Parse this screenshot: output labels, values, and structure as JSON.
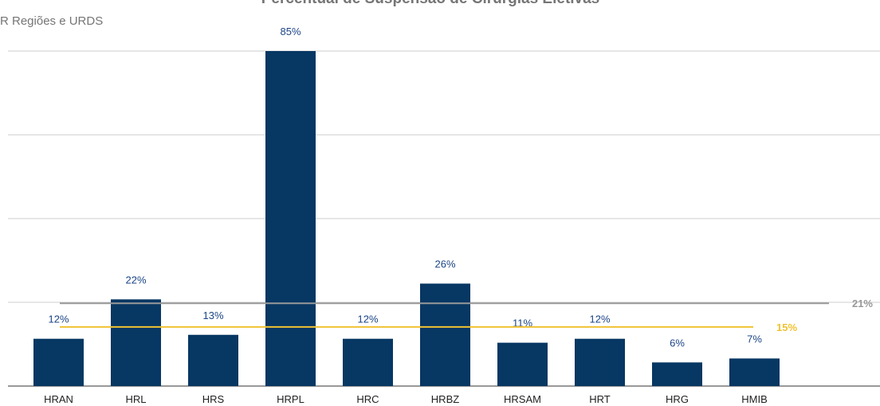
{
  "chart_data": {
    "type": "bar",
    "title": "Percentual de Suspensão de Cirurgias Eletivas",
    "subtitle": "R Regiões e URDS",
    "categories": [
      "HRAN",
      "HRL",
      "HRS",
      "HRPL",
      "HRC",
      "HRBZ",
      "HRSAM",
      "HRT",
      "HRG",
      "HMIB"
    ],
    "values": [
      12,
      22,
      13,
      85,
      12,
      26,
      11,
      12,
      6,
      7
    ],
    "value_labels": [
      "12%",
      "22%",
      "13%",
      "85%",
      "12%",
      "26%",
      "11%",
      "12%",
      "6%",
      "7%"
    ],
    "color": "#073763",
    "ylim": [
      0,
      85
    ],
    "yticks": [
      0,
      21.25,
      42.5,
      63.75,
      85
    ],
    "grid": true,
    "reference_lines": [
      {
        "value": 21,
        "label": "21%",
        "color": "#999999"
      },
      {
        "value": 15,
        "label": "15%",
        "color": "#f1c232"
      }
    ]
  }
}
